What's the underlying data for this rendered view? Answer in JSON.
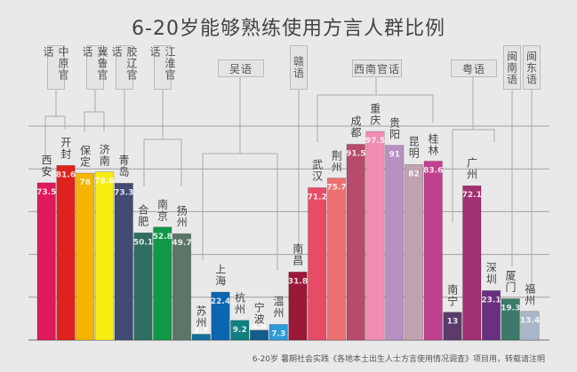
{
  "chart_data": {
    "type": "bar",
    "title": "6-20岁能够熟练使用方言人群比例",
    "ylim": [
      0,
      100
    ],
    "grid": true,
    "categories": [
      "西安",
      "开封",
      "保定",
      "济南",
      "青岛",
      "合肥",
      "南京",
      "扬州",
      "苏州",
      "上海",
      "杭州",
      "宁波",
      "温州",
      "南昌",
      "武汉",
      "荆州",
      "成都",
      "重庆",
      "贵阳",
      "昆明",
      "桂林",
      "南宁",
      "广州",
      "深圳",
      "厦门",
      "福州"
    ],
    "values": [
      73.5,
      81.6,
      78,
      78.6,
      73.3,
      50.1,
      52.8,
      49.7,
      2.7,
      22.4,
      9.2,
      4.6,
      7.3,
      31.8,
      71.2,
      75.7,
      91.5,
      97.5,
      91,
      82,
      83.6,
      13,
      72.1,
      23.1,
      19.3,
      13.4
    ],
    "colors": [
      "#e0195a",
      "#e0221f",
      "#f4b400",
      "#f8ee14",
      "#414a72",
      "#2f6e60",
      "#0f9848",
      "#5b7667",
      "#12709e",
      "#0b66b0",
      "#0f7f80",
      "#135e8c",
      "#2b9bd8",
      "#9c1838",
      "#e84b66",
      "#ee7171",
      "#b84b6b",
      "#f08cb2",
      "#b890c2",
      "#c0a2b2",
      "#c04190",
      "#5a3b6a",
      "#a03070",
      "#6a3080",
      "#3b7a6a",
      "#a8b8c8"
    ],
    "groups": [
      {
        "name": "中原官话",
        "cities": [
          "西安",
          "开封"
        ]
      },
      {
        "name": "冀鲁官话",
        "cities": [
          "保定",
          "济南"
        ]
      },
      {
        "name": "胶辽官话",
        "cities": [
          "青岛"
        ]
      },
      {
        "name": "江淮官话",
        "cities": [
          "合肥",
          "南京",
          "扬州"
        ]
      },
      {
        "name": "吴语",
        "cities": [
          "苏州",
          "上海",
          "杭州",
          "宁波",
          "温州"
        ]
      },
      {
        "name": "赣语",
        "cities": [
          "南昌"
        ]
      },
      {
        "name": "西南官话",
        "cities": [
          "武汉",
          "荆州",
          "成都",
          "重庆",
          "贵阳",
          "昆明",
          "桂林"
        ]
      },
      {
        "name": "粤语",
        "cities": [
          "南宁",
          "广州",
          "深圳"
        ]
      },
      {
        "name": "闽南语",
        "cities": [
          "厦门"
        ]
      },
      {
        "name": "闽东语",
        "cities": [
          "福州"
        ]
      }
    ],
    "footnote": "6-20岁 暑期社会实践《各地本土出生人士方言使用情况调查》项目用，转载请注明"
  }
}
